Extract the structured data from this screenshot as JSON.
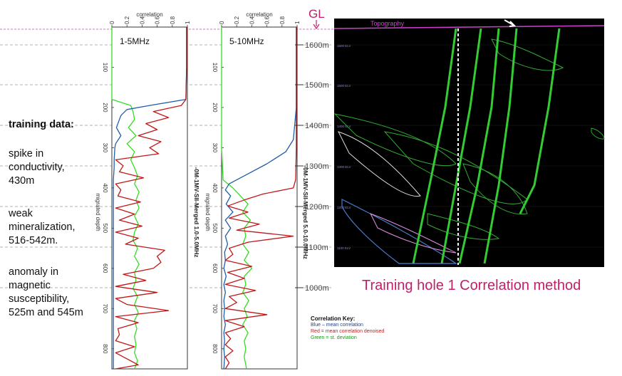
{
  "annotations": {
    "ground_level": "GL",
    "training_heading": "training data:",
    "notes": [
      [
        "spike in",
        "conductivity,",
        "430m"
      ],
      [
        "weak",
        "mineralization,",
        "516-542m."
      ],
      [
        "anomaly in",
        "magnetic",
        "susceptibility,",
        "525m and 545m"
      ]
    ],
    "elevation_ticks": [
      "1600m",
      "1500m",
      "1400m",
      "1300m",
      "1200m",
      "1100m",
      "1000m"
    ]
  },
  "title": "Training hole 1 Correlation method",
  "key": {
    "title": "Correlation Key:",
    "items": [
      {
        "text": "Blue – mean correlation",
        "color": "#1f3f8f"
      },
      {
        "text": "Red = mean correlation denoised",
        "color": "#c02020"
      },
      {
        "text": "Green = st. deviation",
        "color": "#1a9a1a"
      }
    ]
  },
  "colors": {
    "blue": "#1f5fa8",
    "red": "#c01818",
    "green": "#33dd22",
    "accent": "#c0206a"
  },
  "section": {
    "topography_label": "Topography",
    "elev_labels": [
      "1600 ELV",
      "1500 ELV",
      "1400 ELV",
      "1300 ELV",
      "1200 ELV",
      "1100 ELV"
    ]
  },
  "chart_data": [
    {
      "type": "line",
      "panel_label": "1-5MHz",
      "xlabel": "correlation",
      "ylabel": "migrated depth",
      "side_label": "-0M-1MV-SII-Merged 1.0-5.0MHz",
      "xlim": [
        0,
        1
      ],
      "ylim": [
        850,
        0
      ],
      "x_ticks": [
        "0",
        "0.2",
        "0.4",
        "0.6",
        "0.8",
        "1"
      ],
      "y_ticks": [
        100,
        200,
        300,
        400,
        500,
        600,
        700,
        800
      ],
      "series": [
        {
          "color": "#1f5fa8",
          "depth": [
            0,
            20,
            100,
            180,
            195,
            205,
            220,
            250,
            270,
            290,
            300,
            330,
            350,
            380,
            400,
            430,
            450,
            480,
            500,
            520,
            540,
            560,
            580,
            600,
            620,
            650,
            680,
            700,
            720,
            740,
            760,
            790,
            810,
            830,
            850
          ],
          "values": [
            0.99,
            0.99,
            0.99,
            0.98,
            0.5,
            0.2,
            0.12,
            0.06,
            0.12,
            0.05,
            0.04,
            0.03,
            0.03,
            0.02,
            0.02,
            0.02,
            0.02,
            0.02,
            0.02,
            0.02,
            0.02,
            0.02,
            0.02,
            0.02,
            0.02,
            0.02,
            0.02,
            0.02,
            0.02,
            0.02,
            0.02,
            0.02,
            0.02,
            0.02,
            0.02
          ]
        },
        {
          "color": "#c01818",
          "depth": [
            0,
            40,
            100,
            180,
            195,
            210,
            225,
            240,
            255,
            270,
            285,
            300,
            315,
            330,
            345,
            360,
            375,
            390,
            405,
            420,
            435,
            450,
            465,
            480,
            495,
            510,
            525,
            540,
            555,
            570,
            585,
            600,
            615,
            630,
            645,
            660,
            675,
            690,
            705,
            720,
            735,
            750,
            765,
            780,
            795,
            810,
            825,
            840,
            850
          ],
          "values": [
            0.99,
            0.99,
            0.99,
            0.98,
            0.92,
            0.55,
            0.75,
            0.45,
            0.6,
            0.35,
            0.65,
            0.5,
            0.62,
            0.05,
            0.15,
            0.1,
            0.42,
            0.05,
            0.12,
            0.08,
            0.38,
            0.05,
            0.3,
            0.1,
            0.4,
            0.05,
            0.35,
            0.18,
            0.7,
            0.6,
            0.65,
            0.55,
            0.15,
            0.45,
            0.05,
            0.6,
            0.05,
            0.2,
            0.75,
            0.05,
            0.35,
            0.08,
            0.1,
            0.05,
            0.3,
            0.05,
            0.2,
            0.35,
            0.05
          ]
        },
        {
          "color": "#33dd22",
          "depth": [
            0,
            100,
            180,
            195,
            210,
            230,
            250,
            270,
            290,
            310,
            330,
            350,
            370,
            390,
            410,
            430,
            450,
            470,
            490,
            510,
            530,
            550,
            570,
            590,
            610,
            630,
            650,
            670,
            690,
            710,
            730,
            750,
            770,
            790,
            810,
            830,
            850
          ],
          "values": [
            0.0,
            0.0,
            0.0,
            0.25,
            0.28,
            0.3,
            0.22,
            0.32,
            0.2,
            0.3,
            0.25,
            0.3,
            0.34,
            0.3,
            0.36,
            0.32,
            0.36,
            0.3,
            0.35,
            0.3,
            0.28,
            0.34,
            0.3,
            0.36,
            0.3,
            0.32,
            0.28,
            0.34,
            0.3,
            0.35,
            0.3,
            0.33,
            0.3,
            0.32,
            0.3,
            0.34,
            0.3
          ]
        }
      ]
    },
    {
      "type": "line",
      "panel_label": "5-10MHz",
      "xlabel": "correlation",
      "ylabel": "migrated depth",
      "side_label": "-0M-1MV-SII-Merged 5.0-10.0MHz",
      "xlim": [
        0,
        1
      ],
      "ylim": [
        850,
        0
      ],
      "x_ticks": [
        "0",
        "0.2",
        "0.4",
        "0.6",
        "0.8",
        "1"
      ],
      "y_ticks": [
        100,
        200,
        300,
        400,
        500,
        600,
        700,
        800
      ],
      "series": [
        {
          "color": "#1f5fa8",
          "depth": [
            0,
            100,
            200,
            280,
            310,
            340,
            370,
            390,
            405,
            420,
            440,
            460,
            480,
            500,
            520,
            540,
            560,
            580,
            600,
            620,
            640,
            660,
            680,
            700,
            720,
            740,
            760,
            780,
            800,
            820,
            850
          ],
          "values": [
            0.99,
            0.99,
            0.99,
            0.95,
            0.85,
            0.6,
            0.3,
            0.1,
            0.05,
            0.12,
            0.06,
            0.15,
            0.05,
            0.12,
            0.05,
            0.08,
            0.04,
            0.05,
            0.03,
            0.06,
            0.03,
            0.05,
            0.03,
            0.04,
            0.03,
            0.05,
            0.03,
            0.04,
            0.03,
            0.04,
            0.03
          ]
        },
        {
          "color": "#c01818",
          "depth": [
            0,
            100,
            200,
            300,
            380,
            400,
            415,
            430,
            445,
            460,
            475,
            490,
            505,
            520,
            535,
            550,
            565,
            580,
            595,
            610,
            625,
            640,
            655,
            670,
            685,
            700,
            715,
            730,
            745,
            760,
            775,
            790,
            805,
            820,
            835,
            850
          ],
          "values": [
            0.99,
            0.99,
            0.99,
            0.99,
            0.98,
            0.95,
            0.55,
            0.3,
            0.08,
            0.35,
            0.1,
            0.5,
            0.2,
            0.95,
            0.35,
            0.1,
            0.15,
            0.05,
            0.4,
            0.08,
            0.3,
            0.05,
            0.45,
            0.1,
            0.2,
            0.05,
            0.6,
            0.05,
            0.3,
            0.05,
            0.12,
            0.05,
            0.15,
            0.05,
            0.1,
            0.05
          ]
        },
        {
          "color": "#33dd22",
          "depth": [
            0,
            100,
            200,
            300,
            380,
            400,
            420,
            440,
            460,
            480,
            500,
            520,
            540,
            560,
            580,
            600,
            620,
            640,
            660,
            680,
            700,
            720,
            740,
            760,
            780,
            800,
            820,
            850
          ],
          "values": [
            0.0,
            0.0,
            0.0,
            0.0,
            0.02,
            0.15,
            0.25,
            0.35,
            0.28,
            0.38,
            0.3,
            0.32,
            0.28,
            0.36,
            0.3,
            0.4,
            0.3,
            0.32,
            0.28,
            0.36,
            0.3,
            0.34,
            0.28,
            0.35,
            0.3,
            0.32,
            0.3,
            0.33
          ]
        }
      ]
    }
  ]
}
